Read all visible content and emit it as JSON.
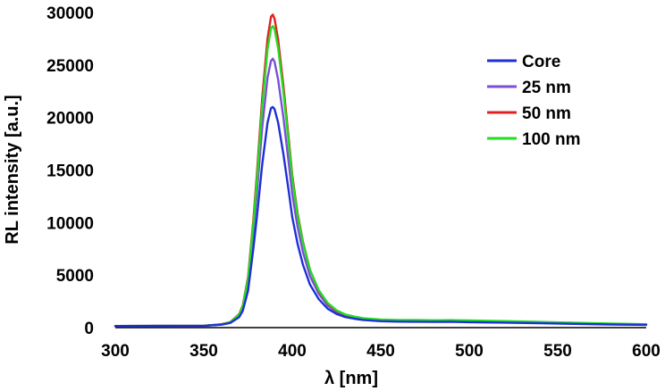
{
  "chart_data": {
    "type": "line",
    "xlabel": "λ [nm]",
    "ylabel": "RL intensity [a.u.]",
    "xlim": [
      300,
      600
    ],
    "ylim": [
      0,
      30000
    ],
    "xticks": [
      300,
      350,
      400,
      450,
      500,
      550,
      600
    ],
    "yticks": [
      0,
      5000,
      10000,
      15000,
      20000,
      25000,
      30000
    ],
    "grid": false,
    "legend_position": "right",
    "x": [
      300,
      350,
      360,
      365,
      370,
      372,
      375,
      378,
      380,
      383,
      386,
      388,
      389,
      390,
      392,
      395,
      398,
      400,
      403,
      406,
      410,
      415,
      420,
      425,
      430,
      435,
      440,
      450,
      460,
      470,
      480,
      490,
      500,
      520,
      540,
      560,
      580,
      600
    ],
    "series": [
      {
        "name": "Core",
        "color": "#1f2fd6",
        "values": [
          150,
          180,
          280,
          450,
          1000,
          1600,
          3500,
          7500,
          10500,
          15500,
          19500,
          20900,
          21000,
          20800,
          19500,
          16500,
          13000,
          10500,
          8000,
          6000,
          4100,
          2700,
          1800,
          1300,
          1000,
          850,
          730,
          610,
          570,
          560,
          540,
          550,
          520,
          480,
          420,
          360,
          300,
          260
        ]
      },
      {
        "name": "25 nm",
        "color": "#7b4fd6",
        "values": [
          150,
          180,
          300,
          500,
          1200,
          1900,
          4200,
          9000,
          12800,
          19000,
          23800,
          25400,
          25600,
          25300,
          23600,
          20000,
          15700,
          12700,
          9600,
          7200,
          4900,
          3200,
          2100,
          1500,
          1150,
          960,
          820,
          690,
          650,
          640,
          620,
          630,
          600,
          550,
          480,
          410,
          340,
          290
        ]
      },
      {
        "name": "50 nm",
        "color": "#e02020",
        "values": [
          150,
          180,
          320,
          530,
          1300,
          2100,
          4800,
          10200,
          14600,
          21800,
          27500,
          29600,
          29800,
          29400,
          27400,
          23000,
          18000,
          14500,
          10900,
          8200,
          5500,
          3500,
          2300,
          1600,
          1200,
          1000,
          870,
          740,
          700,
          690,
          670,
          680,
          650,
          590,
          510,
          440,
          360,
          310
        ]
      },
      {
        "name": "100 nm",
        "color": "#22dd22",
        "values": [
          150,
          180,
          310,
          520,
          1250,
          2000,
          4600,
          9800,
          14000,
          21000,
          26500,
          28500,
          28700,
          28400,
          26600,
          22400,
          17600,
          14200,
          10700,
          8100,
          5500,
          3550,
          2350,
          1650,
          1250,
          1050,
          900,
          770,
          730,
          720,
          700,
          710,
          680,
          620,
          540,
          460,
          380,
          320
        ]
      }
    ]
  }
}
